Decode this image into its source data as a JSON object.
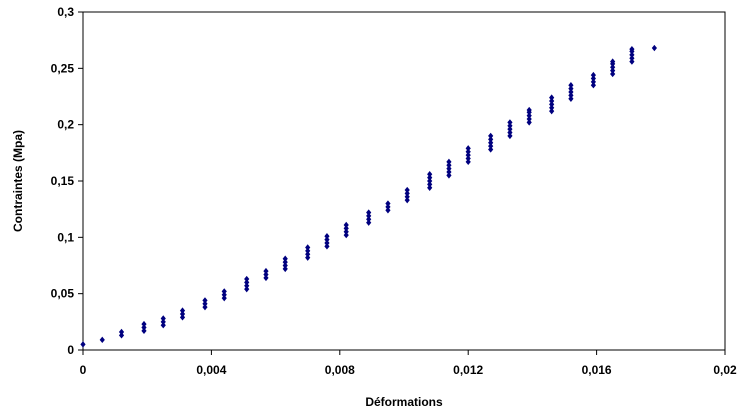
{
  "chart_data": {
    "type": "scatter",
    "title": "",
    "xlabel": "Déformations",
    "ylabel": "Contraintes (Mpa)",
    "xlim": [
      0,
      0.02
    ],
    "ylim": [
      0,
      0.3
    ],
    "x_ticks": [
      "0",
      "0,004",
      "0,008",
      "0,012",
      "0,016",
      "0,02"
    ],
    "y_ticks": [
      "0",
      "0,05",
      "0,1",
      "0,15",
      "0,2",
      "0,25",
      "0,3"
    ],
    "grid": false,
    "legend": "none",
    "marker_color": "#00007f",
    "series": [
      {
        "points": [
          [
            0.0,
            0.005
          ],
          [
            0.0006,
            0.009
          ],
          [
            0.0012,
            0.013
          ],
          [
            0.0012,
            0.016
          ],
          [
            0.0019,
            0.017
          ],
          [
            0.0019,
            0.02
          ],
          [
            0.0019,
            0.023
          ],
          [
            0.0025,
            0.022
          ],
          [
            0.0025,
            0.025
          ],
          [
            0.0025,
            0.028
          ],
          [
            0.0031,
            0.029
          ],
          [
            0.0031,
            0.032
          ],
          [
            0.0031,
            0.035
          ],
          [
            0.0038,
            0.038
          ],
          [
            0.0038,
            0.041
          ],
          [
            0.0038,
            0.044
          ],
          [
            0.0044,
            0.046
          ],
          [
            0.0044,
            0.049
          ],
          [
            0.0044,
            0.052
          ],
          [
            0.0051,
            0.054
          ],
          [
            0.0051,
            0.057
          ],
          [
            0.0051,
            0.06
          ],
          [
            0.0051,
            0.063
          ],
          [
            0.0057,
            0.064
          ],
          [
            0.0057,
            0.067
          ],
          [
            0.0057,
            0.07
          ],
          [
            0.0063,
            0.072
          ],
          [
            0.0063,
            0.075
          ],
          [
            0.0063,
            0.078
          ],
          [
            0.0063,
            0.081
          ],
          [
            0.007,
            0.082
          ],
          [
            0.007,
            0.085
          ],
          [
            0.007,
            0.088
          ],
          [
            0.007,
            0.091
          ],
          [
            0.0076,
            0.092
          ],
          [
            0.0076,
            0.095
          ],
          [
            0.0076,
            0.098
          ],
          [
            0.0076,
            0.101
          ],
          [
            0.0082,
            0.102
          ],
          [
            0.0082,
            0.105
          ],
          [
            0.0082,
            0.108
          ],
          [
            0.0082,
            0.111
          ],
          [
            0.0089,
            0.113
          ],
          [
            0.0089,
            0.116
          ],
          [
            0.0089,
            0.119
          ],
          [
            0.0089,
            0.122
          ],
          [
            0.0095,
            0.124
          ],
          [
            0.0095,
            0.127
          ],
          [
            0.0095,
            0.13
          ],
          [
            0.0101,
            0.133
          ],
          [
            0.0101,
            0.136
          ],
          [
            0.0101,
            0.139
          ],
          [
            0.0101,
            0.142
          ],
          [
            0.0108,
            0.144
          ],
          [
            0.0108,
            0.147
          ],
          [
            0.0108,
            0.15
          ],
          [
            0.0108,
            0.153
          ],
          [
            0.0108,
            0.156
          ],
          [
            0.0114,
            0.155
          ],
          [
            0.0114,
            0.158
          ],
          [
            0.0114,
            0.161
          ],
          [
            0.0114,
            0.164
          ],
          [
            0.0114,
            0.167
          ],
          [
            0.012,
            0.167
          ],
          [
            0.012,
            0.17
          ],
          [
            0.012,
            0.173
          ],
          [
            0.012,
            0.176
          ],
          [
            0.012,
            0.179
          ],
          [
            0.0127,
            0.178
          ],
          [
            0.0127,
            0.181
          ],
          [
            0.0127,
            0.184
          ],
          [
            0.0127,
            0.187
          ],
          [
            0.0127,
            0.19
          ],
          [
            0.0133,
            0.19
          ],
          [
            0.0133,
            0.193
          ],
          [
            0.0133,
            0.196
          ],
          [
            0.0133,
            0.199
          ],
          [
            0.0133,
            0.202
          ],
          [
            0.0139,
            0.202
          ],
          [
            0.0139,
            0.205
          ],
          [
            0.0139,
            0.208
          ],
          [
            0.0139,
            0.211
          ],
          [
            0.0139,
            0.213
          ],
          [
            0.0146,
            0.212
          ],
          [
            0.0146,
            0.215
          ],
          [
            0.0146,
            0.218
          ],
          [
            0.0146,
            0.221
          ],
          [
            0.0146,
            0.224
          ],
          [
            0.0152,
            0.223
          ],
          [
            0.0152,
            0.226
          ],
          [
            0.0152,
            0.229
          ],
          [
            0.0152,
            0.232
          ],
          [
            0.0152,
            0.235
          ],
          [
            0.0159,
            0.235
          ],
          [
            0.0159,
            0.238
          ],
          [
            0.0159,
            0.241
          ],
          [
            0.0159,
            0.244
          ],
          [
            0.0165,
            0.245
          ],
          [
            0.0165,
            0.248
          ],
          [
            0.0165,
            0.251
          ],
          [
            0.0165,
            0.254
          ],
          [
            0.0165,
            0.256
          ],
          [
            0.0171,
            0.256
          ],
          [
            0.0171,
            0.259
          ],
          [
            0.0171,
            0.262
          ],
          [
            0.0171,
            0.265
          ],
          [
            0.0171,
            0.267
          ],
          [
            0.0178,
            0.268
          ]
        ]
      }
    ]
  }
}
